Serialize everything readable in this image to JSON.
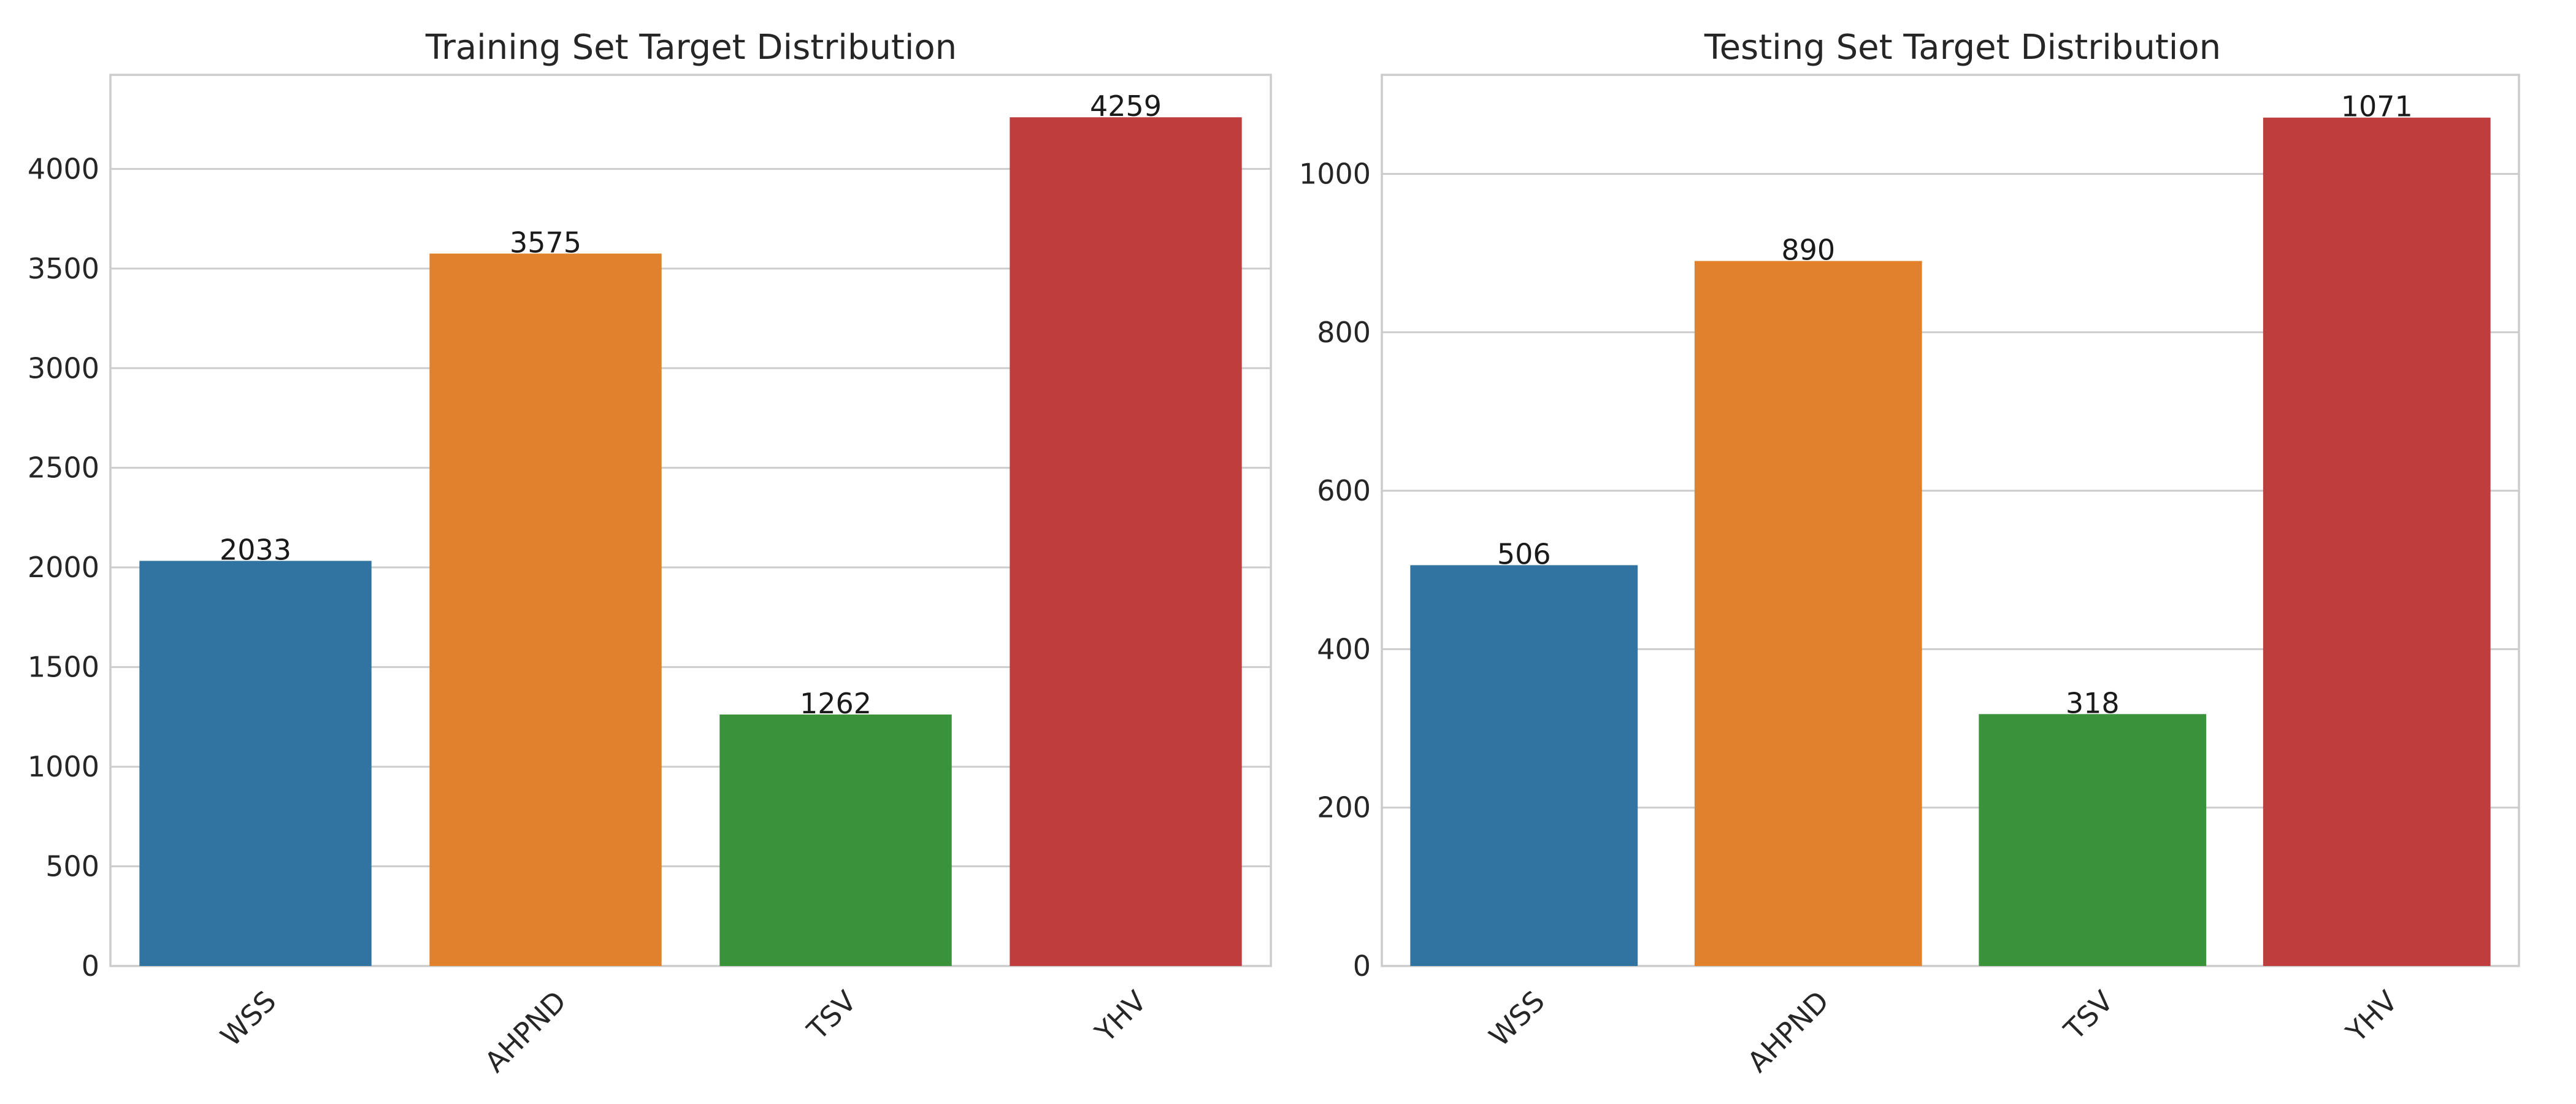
{
  "chart_data": [
    {
      "type": "bar",
      "title": "Training Set Target Distribution",
      "xlabel": "",
      "ylabel": "",
      "categories": [
        "WSS",
        "AHPND",
        "TSV",
        "YHV"
      ],
      "values": [
        2033,
        3575,
        1262,
        4259
      ],
      "data_labels": [
        "2033",
        "3575",
        "1262",
        "4259"
      ],
      "colors": [
        "#3274a1",
        "#e1812c",
        "#3a923a",
        "#c03d3e"
      ],
      "ylim": [
        0,
        4472
      ],
      "yticks": [
        0,
        500,
        1000,
        1500,
        2000,
        2500,
        3000,
        3500,
        4000
      ],
      "grid": true,
      "legend": "none"
    },
    {
      "type": "bar",
      "title": "Testing Set Target Distribution",
      "xlabel": "",
      "ylabel": "",
      "categories": [
        "WSS",
        "AHPND",
        "TSV",
        "YHV"
      ],
      "values": [
        506,
        890,
        318,
        1071
      ],
      "data_labels": [
        "506",
        "890",
        "318",
        "1071"
      ],
      "colors": [
        "#3274a1",
        "#e1812c",
        "#3a923a",
        "#c03d3e"
      ],
      "ylim": [
        0,
        1125
      ],
      "yticks": [
        0,
        200,
        400,
        600,
        800,
        1000
      ],
      "grid": true,
      "legend": "none"
    }
  ]
}
